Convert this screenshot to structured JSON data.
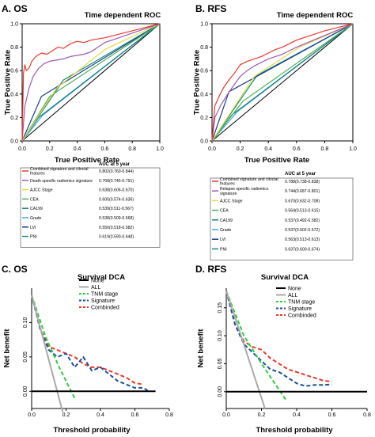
{
  "chart_data": [
    {
      "type": "line",
      "panel_label": "A. OS",
      "title": "Time dependent ROC",
      "xlabel": "True Positive Rate",
      "ylabel": "True Positive Rate",
      "xlim": [
        0,
        1
      ],
      "ylim": [
        0,
        1
      ],
      "xticks": [
        "0.0",
        "0.2",
        "0.4",
        "0.6",
        "0.8",
        "1.0"
      ],
      "yticks": [
        "0.0",
        "0.2",
        "0.4",
        "0.6",
        "0.8",
        "1.0"
      ],
      "legend_header": "AUC at 5 year",
      "legend_position": "below",
      "series": [
        {
          "name": "Combined signature and clincial features",
          "auc": "0.802(0.760-0.844)",
          "color": "#e8392a",
          "x": [
            0,
            0.01,
            0.02,
            0.03,
            0.05,
            0.07,
            0.1,
            0.14,
            0.18,
            0.22,
            0.26,
            0.3,
            0.35,
            0.4,
            0.45,
            0.5,
            0.55,
            0.6,
            0.7,
            0.8,
            0.9,
            1.0
          ],
          "y": [
            0,
            0.58,
            0.65,
            0.6,
            0.62,
            0.68,
            0.72,
            0.75,
            0.74,
            0.77,
            0.8,
            0.79,
            0.83,
            0.85,
            0.84,
            0.86,
            0.87,
            0.88,
            0.91,
            0.94,
            0.97,
            1.0
          ]
        },
        {
          "name": "Death specific radiomics signature",
          "auc": "0.768(0.745-0.791)",
          "color": "#9b59b6",
          "x": [
            0,
            0.02,
            0.05,
            0.08,
            0.12,
            0.16,
            0.2,
            0.25,
            0.3,
            0.35,
            0.4,
            0.45,
            0.5,
            0.55,
            0.6,
            0.7,
            0.8,
            0.9,
            1.0
          ],
          "y": [
            0,
            0.3,
            0.45,
            0.55,
            0.62,
            0.66,
            0.68,
            0.69,
            0.7,
            0.72,
            0.73,
            0.74,
            0.76,
            0.8,
            0.84,
            0.88,
            0.92,
            0.96,
            1.0
          ]
        },
        {
          "name": "AJCC Stage",
          "auc": "0.638(0.606-0.670)",
          "color": "#e6d84a",
          "x": [
            0,
            0.25,
            0.6,
            1.0
          ],
          "y": [
            0,
            0.45,
            0.78,
            1.0
          ]
        },
        {
          "name": "CEA",
          "auc": "0.605(0.574-0.636)",
          "color": "#4caf50",
          "x": [
            0,
            0.2,
            1.0
          ],
          "y": [
            0,
            0.38,
            1.0
          ]
        },
        {
          "name": "CA199",
          "auc": "0.539(0.511-0.567)",
          "color": "#1a7f7a",
          "x": [
            0,
            0.12,
            1.0
          ],
          "y": [
            0,
            0.2,
            1.0
          ]
        },
        {
          "name": "Grade",
          "auc": "0.538(0.509-0.568)",
          "color": "#3fa9f5",
          "x": [
            0,
            0.15,
            1.0
          ],
          "y": [
            0,
            0.22,
            1.0
          ]
        },
        {
          "name": "LVI",
          "auc": "0.550(0.518-0.582)",
          "color": "#1f3a93",
          "x": [
            0,
            0.14,
            1.0
          ],
          "y": [
            0,
            0.38,
            1.0
          ]
        },
        {
          "name": "PNI",
          "auc": "0.619(0.590-0.648)",
          "color": "#0e8f7e",
          "x": [
            0,
            0.3,
            1.0
          ],
          "y": [
            0,
            0.52,
            1.0
          ]
        }
      ]
    },
    {
      "type": "line",
      "panel_label": "B. RFS",
      "title": "Time dependent ROC",
      "xlabel": "True Positive Rate",
      "ylabel": "True Positive Rate",
      "xlim": [
        0,
        1
      ],
      "ylim": [
        0,
        1
      ],
      "xticks": [
        "0.0",
        "0.2",
        "0.4",
        "0.6",
        "0.8",
        "1.0"
      ],
      "yticks": [
        "0.0",
        "0.2",
        "0.4",
        "0.6",
        "0.8",
        "1.0"
      ],
      "legend_header": "AUC at 5 year",
      "legend_position": "below",
      "series": [
        {
          "name": "Combined signature and clincial features",
          "auc": "0.788(0.738-0.838)",
          "color": "#e8392a",
          "x": [
            0,
            0.02,
            0.05,
            0.08,
            0.12,
            0.16,
            0.2,
            0.25,
            0.3,
            0.35,
            0.4,
            0.45,
            0.5,
            0.55,
            0.6,
            0.7,
            0.8,
            0.9,
            1.0
          ],
          "y": [
            0,
            0.3,
            0.38,
            0.45,
            0.52,
            0.58,
            0.65,
            0.68,
            0.7,
            0.72,
            0.75,
            0.78,
            0.8,
            0.83,
            0.86,
            0.9,
            0.94,
            0.97,
            1.0
          ]
        },
        {
          "name": "Relapse specific radiomics signature",
          "auc": "0.744(0.687-0.801)",
          "color": "#9b59b6",
          "x": [
            0,
            0.02,
            0.06,
            0.1,
            0.14,
            0.2,
            0.25,
            0.3,
            0.35,
            0.4,
            0.45,
            0.5,
            0.55,
            0.6,
            0.7,
            0.8,
            0.9,
            1.0
          ],
          "y": [
            0,
            0.2,
            0.3,
            0.38,
            0.45,
            0.55,
            0.6,
            0.64,
            0.67,
            0.7,
            0.72,
            0.74,
            0.77,
            0.8,
            0.85,
            0.9,
            0.95,
            1.0
          ]
        },
        {
          "name": "AJCC Stage",
          "auc": "0.670(0.632-0.708)",
          "color": "#e6d84a",
          "x": [
            0,
            0.3,
            0.62,
            1.0
          ],
          "y": [
            0,
            0.55,
            0.8,
            1.0
          ]
        },
        {
          "name": "CEA",
          "auc": "0.564(0.513-0.615)",
          "color": "#4caf50",
          "x": [
            0,
            0.22,
            1.0
          ],
          "y": [
            0,
            0.34,
            1.0
          ]
        },
        {
          "name": "CA199",
          "auc": "0.537(0.492-0.582)",
          "color": "#1a7f7a",
          "x": [
            0,
            0.14,
            1.0
          ],
          "y": [
            0,
            0.22,
            1.0
          ]
        },
        {
          "name": "Grade",
          "auc": "0.537(0.502-0.572)",
          "color": "#3fa9f5",
          "x": [
            0,
            0.18,
            1.0
          ],
          "y": [
            0,
            0.25,
            1.0
          ]
        },
        {
          "name": "LVI",
          "auc": "0.563(0.513-0.613)",
          "color": "#1f3a93",
          "x": [
            0,
            0.12,
            1.0
          ],
          "y": [
            0,
            0.42,
            1.0
          ]
        },
        {
          "name": "PNI",
          "auc": "0.637(0.600-0.674)",
          "color": "#0e8f7e",
          "x": [
            0,
            0.32,
            1.0
          ],
          "y": [
            0,
            0.56,
            1.0
          ]
        }
      ]
    },
    {
      "type": "line",
      "panel_label": "C. OS",
      "title": "Survival DCA",
      "xlabel": "Threshold probability",
      "ylabel": "Net benefit",
      "xlim": [
        0,
        0.8
      ],
      "ylim": [
        -0.025,
        0.15
      ],
      "xticks": [
        0,
        0.2,
        0.4,
        0.6,
        0.8
      ],
      "xtick_labels": [
        "0.0",
        "0.2",
        "0.4",
        "0.6",
        "0.8"
      ],
      "yticks": [
        0,
        0.05,
        0.1
      ],
      "ytick_labels": [
        "0.00",
        "0.05",
        "0.10"
      ],
      "legend_position": "top-right",
      "series": [
        {
          "name": "None",
          "color": "#000000",
          "dash": "solid",
          "width": 2,
          "x": [
            0,
            0.72
          ],
          "y": [
            0,
            0
          ]
        },
        {
          "name": "ALL",
          "color": "#aaaaaa",
          "dash": "solid",
          "width": 2,
          "x": [
            0,
            0.18
          ],
          "y": [
            0.14,
            -0.03
          ]
        },
        {
          "name": "TNM stage",
          "color": "#2ecc40",
          "dash": "dashed",
          "width": 2,
          "x": [
            0,
            0.08,
            0.16,
            0.25
          ],
          "y": [
            0.14,
            0.08,
            0.035,
            -0.01
          ]
        },
        {
          "name": "Signature",
          "color": "#1f4e9c",
          "dash": "dashed",
          "width": 2,
          "x": [
            0,
            0.05,
            0.1,
            0.15,
            0.2,
            0.25,
            0.3,
            0.35,
            0.4,
            0.45,
            0.5,
            0.55,
            0.6,
            0.65,
            0.68
          ],
          "y": [
            0.14,
            0.09,
            0.06,
            0.05,
            0.055,
            0.035,
            0.05,
            0.03,
            0.035,
            0.025,
            0.015,
            0.01,
            0.005,
            0.005,
            0.0
          ]
        },
        {
          "name": "Combinded",
          "color": "#e8392a",
          "dash": "dashed",
          "width": 2,
          "x": [
            0,
            0.05,
            0.1,
            0.15,
            0.2,
            0.25,
            0.3,
            0.35,
            0.4,
            0.45,
            0.5,
            0.55,
            0.6,
            0.65
          ],
          "y": [
            0.14,
            0.09,
            0.065,
            0.06,
            0.055,
            0.05,
            0.04,
            0.035,
            0.035,
            0.03,
            0.025,
            0.02,
            0.012,
            0.01
          ]
        }
      ]
    },
    {
      "type": "line",
      "panel_label": "D. RFS",
      "title": "Survival DCA",
      "xlabel": "Threshold probability",
      "ylabel": "Net benefit",
      "xlim": [
        0,
        0.8
      ],
      "ylim": [
        -0.03,
        0.185
      ],
      "xticks": [
        0,
        0.2,
        0.4,
        0.6,
        0.8
      ],
      "xtick_labels": [
        "0.0",
        "0.2",
        "0.4",
        "0.6",
        "0.8"
      ],
      "yticks": [
        0,
        0.05,
        0.1,
        0.15
      ],
      "ytick_labels": [
        "0.00",
        "0.05",
        "0.10",
        "0.15"
      ],
      "legend_position": "top-right",
      "series": [
        {
          "name": "None",
          "color": "#000000",
          "dash": "solid",
          "width": 2,
          "x": [
            0,
            0.8
          ],
          "y": [
            0,
            0
          ]
        },
        {
          "name": "ALL",
          "color": "#aaaaaa",
          "dash": "solid",
          "width": 2,
          "x": [
            0,
            0.22
          ],
          "y": [
            0.18,
            -0.03
          ]
        },
        {
          "name": "TNM stage",
          "color": "#2ecc40",
          "dash": "dashed",
          "width": 2,
          "x": [
            0,
            0.1,
            0.2,
            0.34
          ],
          "y": [
            0.18,
            0.1,
            0.05,
            -0.015
          ]
        },
        {
          "name": "Signature",
          "color": "#1f4e9c",
          "dash": "dashed",
          "width": 2,
          "x": [
            0,
            0.05,
            0.1,
            0.15,
            0.2,
            0.25,
            0.3,
            0.35,
            0.4,
            0.45,
            0.5,
            0.55,
            0.6
          ],
          "y": [
            0.18,
            0.12,
            0.085,
            0.07,
            0.055,
            0.04,
            0.035,
            0.025,
            0.015,
            0.01,
            0.012,
            0.012,
            0.013
          ]
        },
        {
          "name": "Combinded",
          "color": "#e8392a",
          "dash": "dashed",
          "width": 2,
          "x": [
            0,
            0.05,
            0.1,
            0.15,
            0.2,
            0.25,
            0.3,
            0.35,
            0.4,
            0.45,
            0.5,
            0.55,
            0.6
          ],
          "y": [
            0.18,
            0.12,
            0.09,
            0.08,
            0.075,
            0.06,
            0.05,
            0.04,
            0.035,
            0.03,
            0.025,
            0.02,
            0.018
          ]
        }
      ]
    }
  ]
}
